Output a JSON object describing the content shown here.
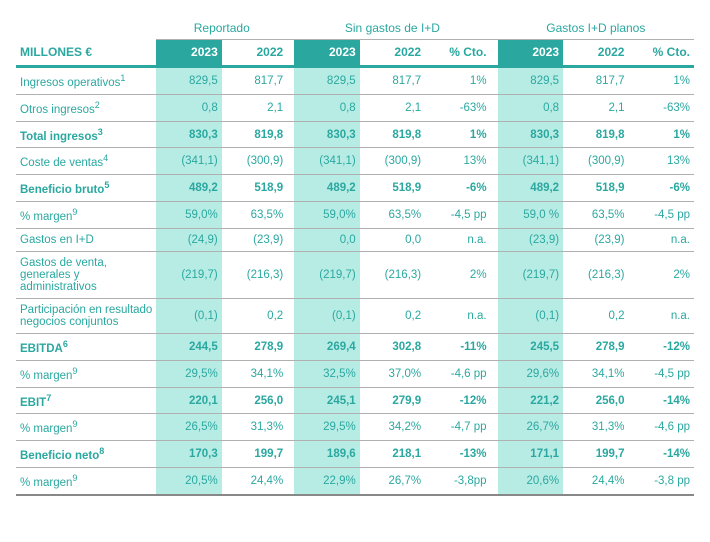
{
  "title": "MILLONES €",
  "groups": [
    {
      "label": "Reportado",
      "cols": [
        "2023",
        "2022"
      ]
    },
    {
      "label": "Sin gastos de I+D",
      "cols": [
        "2023",
        "2022",
        "% Cto."
      ]
    },
    {
      "label": "Gastos I+D planos",
      "cols": [
        "2023",
        "2022",
        "% Cto."
      ]
    }
  ],
  "rows": [
    {
      "label": "Ingresos operativos",
      "sup": "1",
      "bold": false,
      "v": [
        "829,5",
        "817,7",
        "829,5",
        "817,7",
        "1%",
        "829,5",
        "817,7",
        "1%"
      ]
    },
    {
      "label": "Otros ingresos",
      "sup": "2",
      "bold": false,
      "v": [
        "0,8",
        "2,1",
        "0,8",
        "2,1",
        "-63%",
        "0,8",
        "2,1",
        "-63%"
      ]
    },
    {
      "label": "Total ingresos",
      "sup": "3",
      "bold": true,
      "v": [
        "830,3",
        "819,8",
        "830,3",
        "819,8",
        "1%",
        "830,3",
        "819,8",
        "1%"
      ]
    },
    {
      "label": "Coste de ventas",
      "sup": "4",
      "bold": false,
      "v": [
        "(341,1)",
        "(300,9)",
        "(341,1)",
        "(300,9)",
        "13%",
        "(341,1)",
        "(300,9)",
        "13%"
      ]
    },
    {
      "label": "Beneficio bruto",
      "sup": "5",
      "bold": true,
      "v": [
        "489,2",
        "518,9",
        "489,2",
        "518,9",
        "-6%",
        "489,2",
        "518,9",
        "-6%"
      ]
    },
    {
      "label": "% margen",
      "sup": "9",
      "bold": false,
      "v": [
        "59,0%",
        "63,5%",
        "59,0%",
        "63,5%",
        "-4,5 pp",
        "59,0 %",
        "63,5%",
        "-4,5 pp"
      ]
    },
    {
      "label": "Gastos en I+D",
      "sup": "",
      "bold": false,
      "v": [
        "(24,9)",
        "(23,9)",
        "0,0",
        "0,0",
        "n.a.",
        "(23,9)",
        "(23,9)",
        "n.a."
      ]
    },
    {
      "label": "Gastos de venta, generales y administrativos",
      "sup": "",
      "bold": false,
      "v": [
        "(219,7)",
        "(216,3)",
        "(219,7)",
        "(216,3)",
        "2%",
        "(219,7)",
        "(216,3)",
        "2%"
      ]
    },
    {
      "label": "Participación en resultado negocios conjuntos",
      "sup": "",
      "bold": false,
      "v": [
        "(0,1)",
        "0,2",
        "(0,1)",
        "0,2",
        "n.a.",
        "(0,1)",
        "0,2",
        "n.a."
      ]
    },
    {
      "label": "EBITDA",
      "sup": "6",
      "bold": true,
      "v": [
        "244,5",
        "278,9",
        "269,4",
        "302,8",
        "-11%",
        "245,5",
        "278,9",
        "-12%"
      ]
    },
    {
      "label": "% margen",
      "sup": "9",
      "bold": false,
      "v": [
        "29,5%",
        "34,1%",
        "32,5%",
        "37,0%",
        "-4,6 pp",
        "29,6%",
        "34,1%",
        "-4,5 pp"
      ]
    },
    {
      "label": "EBIT",
      "sup": "7",
      "bold": true,
      "v": [
        "220,1",
        "256,0",
        "245,1",
        "279,9",
        "-12%",
        "221,2",
        "256,0",
        "-14%"
      ]
    },
    {
      "label": "% margen",
      "sup": "9",
      "bold": false,
      "v": [
        "26,5%",
        "31,3%",
        "29,5%",
        "34,2%",
        "-4,7 pp",
        "26,7%",
        "31,3%",
        "-4,6 pp"
      ]
    },
    {
      "label": "Beneficio neto",
      "sup": "8",
      "bold": true,
      "v": [
        "170,3",
        "199,7",
        "189,6",
        "218,1",
        "-13%",
        "171,1",
        "199,7",
        "-14%"
      ]
    },
    {
      "label": "% margen",
      "sup": "9",
      "bold": false,
      "last": true,
      "v": [
        "20,5%",
        "24,4%",
        "22,9%",
        "26,7%",
        "-3,8pp",
        "20,6%",
        "24,4%",
        "-3,8 pp"
      ]
    }
  ]
}
